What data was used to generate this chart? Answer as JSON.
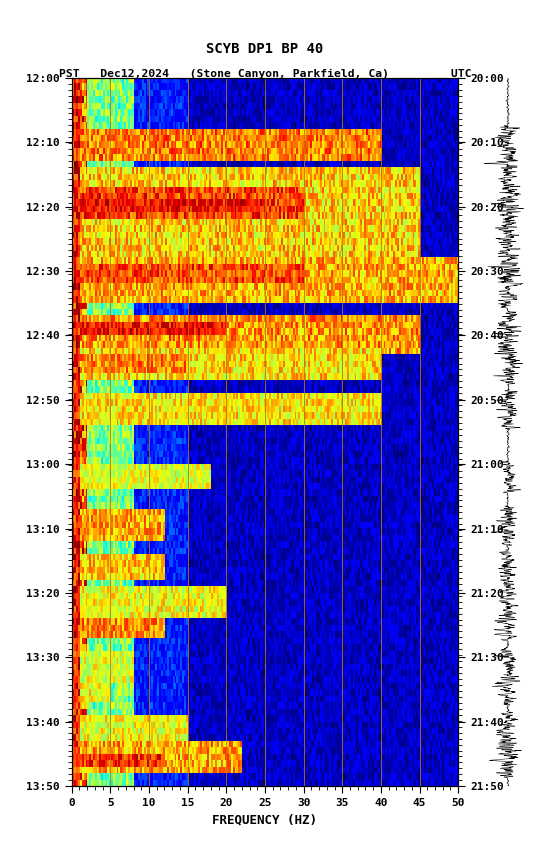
{
  "title_line1": "SCYB DP1 BP 40",
  "title_line2": "PST   Dec12,2024   (Stone Canyon, Parkfield, Ca)         UTC",
  "xlabel": "FREQUENCY (HZ)",
  "freq_min": 0,
  "freq_max": 50,
  "pst_ticks": [
    "12:00",
    "12:10",
    "12:20",
    "12:30",
    "12:40",
    "12:50",
    "13:00",
    "13:10",
    "13:20",
    "13:30",
    "13:40",
    "13:50"
  ],
  "utc_ticks": [
    "20:00",
    "20:10",
    "20:20",
    "20:30",
    "20:40",
    "20:50",
    "21:00",
    "21:10",
    "21:20",
    "21:30",
    "21:40",
    "21:50"
  ],
  "freq_ticks": [
    0,
    5,
    10,
    15,
    20,
    25,
    30,
    35,
    40,
    45,
    50
  ],
  "vertical_lines_freq": [
    5,
    10,
    15,
    20,
    25,
    30,
    35,
    40,
    45
  ],
  "background_color": "#ffffff",
  "colormap": "jet",
  "n_time": 110,
  "n_freq": 200,
  "seed": 42
}
